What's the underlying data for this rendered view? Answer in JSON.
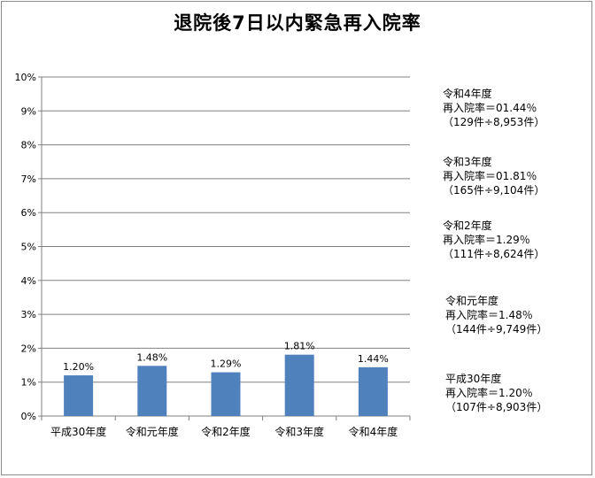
{
  "chart_data": {
    "type": "bar",
    "title": "退院後7日以内緊急再入院率",
    "categories": [
      "平成30年度",
      "令和元年度",
      "令和2年度",
      "令和3年度",
      "令和4年度"
    ],
    "values": [
      1.2,
      1.48,
      1.29,
      1.81,
      1.44
    ],
    "data_labels": [
      "1.20%",
      "1.48%",
      "1.29%",
      "1.81%",
      "1.44%"
    ],
    "ylim": [
      0,
      10
    ],
    "yticks": [
      "0%",
      "1%",
      "2%",
      "3%",
      "4%",
      "5%",
      "6%",
      "7%",
      "8%",
      "9%",
      "10%"
    ],
    "grid": true,
    "bar_color": "#4f81bd",
    "annotations": [
      {
        "year": "令和4年度",
        "rate": "再入院率＝01.44％",
        "detail": "（129件÷8,953件）"
      },
      {
        "year": "令和3年度",
        "rate": "再入院率＝01.81％",
        "detail": "（165件÷9,104件）"
      },
      {
        "year": "令和2年度",
        "rate": "再入院率＝1.29％",
        "detail": "（111件÷8,624件）"
      },
      {
        "year": "令和元年度",
        "rate": "再入院率＝1.48％",
        "detail": "（144件÷9,749件）"
      },
      {
        "year": "平成30年度",
        "rate": "再入院率＝1.20％",
        "detail": "（107件÷8,903件）"
      }
    ]
  }
}
